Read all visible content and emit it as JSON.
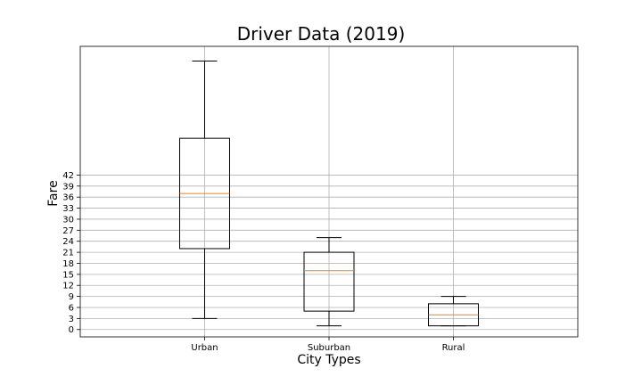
{
  "chart_data": {
    "type": "boxplot",
    "title": "Driver Data (2019)",
    "xlabel": "City Types",
    "ylabel": "Fare",
    "categories": [
      "Urban",
      "Suburban",
      "Rural"
    ],
    "series": [
      {
        "category": "Urban",
        "whisker_low": 3,
        "q1": 22,
        "median": 37,
        "q3": 52,
        "whisker_high": 73
      },
      {
        "category": "Suburban",
        "whisker_low": 1,
        "q1": 5,
        "median": 16,
        "q3": 21,
        "whisker_high": 25
      },
      {
        "category": "Rural",
        "whisker_low": 1,
        "q1": 1,
        "median": 4,
        "q3": 7,
        "whisker_high": 9
      }
    ],
    "yticks": [
      0,
      3,
      6,
      9,
      12,
      15,
      18,
      21,
      24,
      27,
      30,
      33,
      36,
      39,
      42
    ],
    "ylim": [
      -2,
      77
    ],
    "grid": true,
    "colors": {
      "box": "#000000",
      "median": "#ff7f0e",
      "grid": "#b0b0b0"
    }
  }
}
